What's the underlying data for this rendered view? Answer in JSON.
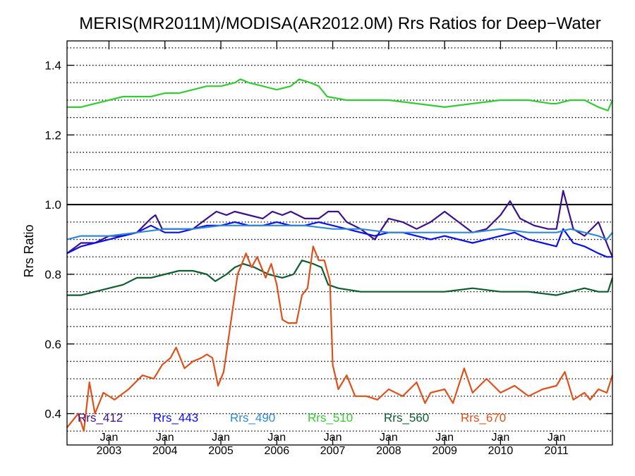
{
  "chart_data": {
    "type": "line",
    "title": "MERIS(MR2011M)/MODISA(AR2012.0M)  Rrs Ratios for Deep−Water",
    "ylabel": "Rrs Ratio",
    "xlabel": "",
    "xlim": [
      2002.25,
      2012.0
    ],
    "ylim": [
      0.31,
      1.47
    ],
    "yticks": [
      0.4,
      0.6,
      0.8,
      1.0,
      1.2,
      1.4
    ],
    "ytick_labels": [
      "0.4",
      "0.6",
      "0.8",
      "1.0",
      "1.2",
      "1.4"
    ],
    "yminor_step": 0.05,
    "grid": "horizontal dotted every 0.05",
    "reference_line": 1.0,
    "xticks": [
      {
        "x": 2003.0,
        "line1": "Jan",
        "line2": "2003"
      },
      {
        "x": 2004.0,
        "line1": "Jan",
        "line2": "2004"
      },
      {
        "x": 2005.0,
        "line1": "Jan",
        "line2": "2005"
      },
      {
        "x": 2006.0,
        "line1": "Jan",
        "line2": "2006"
      },
      {
        "x": 2007.0,
        "line1": "Jan",
        "line2": "2007"
      },
      {
        "x": 2008.0,
        "line1": "Jan",
        "line2": "2008"
      },
      {
        "x": 2009.0,
        "line1": "Jan",
        "line2": "2009"
      },
      {
        "x": 2010.0,
        "line1": "Jan",
        "line2": "2010"
      },
      {
        "x": 2011.0,
        "line1": "Jan",
        "line2": "2011"
      }
    ],
    "legend_placement": "bottom inside",
    "series": [
      {
        "name": "Rrs_412",
        "color": "#3d0f8c",
        "points": [
          [
            2002.25,
            0.86
          ],
          [
            2002.5,
            0.89
          ],
          [
            2002.75,
            0.89
          ],
          [
            2003.0,
            0.91
          ],
          [
            2003.25,
            0.91
          ],
          [
            2003.5,
            0.92
          ],
          [
            2003.75,
            0.96
          ],
          [
            2003.83,
            0.97
          ],
          [
            2003.95,
            0.93
          ],
          [
            2004.25,
            0.93
          ],
          [
            2004.5,
            0.93
          ],
          [
            2004.75,
            0.96
          ],
          [
            2004.92,
            0.98
          ],
          [
            2005.1,
            0.97
          ],
          [
            2005.25,
            0.98
          ],
          [
            2005.5,
            0.97
          ],
          [
            2005.75,
            0.96
          ],
          [
            2005.92,
            0.98
          ],
          [
            2006.1,
            0.97
          ],
          [
            2006.25,
            0.98
          ],
          [
            2006.5,
            0.96
          ],
          [
            2006.75,
            0.96
          ],
          [
            2006.92,
            0.98
          ],
          [
            2007.1,
            0.98
          ],
          [
            2007.25,
            0.95
          ],
          [
            2007.5,
            0.93
          ],
          [
            2007.75,
            0.9
          ],
          [
            2008.0,
            0.96
          ],
          [
            2008.25,
            0.95
          ],
          [
            2008.5,
            0.93
          ],
          [
            2008.75,
            0.95
          ],
          [
            2009.0,
            0.98
          ],
          [
            2009.25,
            0.95
          ],
          [
            2009.5,
            0.92
          ],
          [
            2009.75,
            0.93
          ],
          [
            2010.0,
            0.97
          ],
          [
            2010.17,
            1.01
          ],
          [
            2010.35,
            0.96
          ],
          [
            2010.6,
            0.94
          ],
          [
            2010.85,
            0.93
          ],
          [
            2011.0,
            0.93
          ],
          [
            2011.12,
            1.04
          ],
          [
            2011.3,
            0.93
          ],
          [
            2011.5,
            0.91
          ],
          [
            2011.75,
            0.95
          ],
          [
            2011.92,
            0.88
          ],
          [
            2012.0,
            0.85
          ]
        ]
      },
      {
        "name": "Rrs_443",
        "color": "#0a0ff0",
        "points": [
          [
            2002.25,
            0.86
          ],
          [
            2002.5,
            0.88
          ],
          [
            2002.75,
            0.89
          ],
          [
            2003.0,
            0.9
          ],
          [
            2003.25,
            0.91
          ],
          [
            2003.5,
            0.92
          ],
          [
            2003.75,
            0.94
          ],
          [
            2004.0,
            0.92
          ],
          [
            2004.25,
            0.92
          ],
          [
            2004.5,
            0.93
          ],
          [
            2004.75,
            0.94
          ],
          [
            2005.0,
            0.94
          ],
          [
            2005.25,
            0.95
          ],
          [
            2005.5,
            0.94
          ],
          [
            2005.75,
            0.94
          ],
          [
            2006.0,
            0.95
          ],
          [
            2006.25,
            0.94
          ],
          [
            2006.5,
            0.94
          ],
          [
            2006.75,
            0.95
          ],
          [
            2007.0,
            0.94
          ],
          [
            2007.25,
            0.93
          ],
          [
            2007.5,
            0.92
          ],
          [
            2007.75,
            0.91
          ],
          [
            2008.0,
            0.92
          ],
          [
            2008.25,
            0.92
          ],
          [
            2008.5,
            0.91
          ],
          [
            2008.75,
            0.9
          ],
          [
            2009.0,
            0.91
          ],
          [
            2009.25,
            0.9
          ],
          [
            2009.5,
            0.89
          ],
          [
            2009.75,
            0.9
          ],
          [
            2010.0,
            0.91
          ],
          [
            2010.25,
            0.92
          ],
          [
            2010.5,
            0.9
          ],
          [
            2010.75,
            0.89
          ],
          [
            2011.0,
            0.88
          ],
          [
            2011.12,
            0.93
          ],
          [
            2011.3,
            0.89
          ],
          [
            2011.5,
            0.88
          ],
          [
            2011.75,
            0.86
          ],
          [
            2011.9,
            0.85
          ],
          [
            2012.0,
            0.85
          ]
        ]
      },
      {
        "name": "Rrs_490",
        "color": "#2e8ad6",
        "points": [
          [
            2002.25,
            0.9
          ],
          [
            2002.5,
            0.91
          ],
          [
            2002.75,
            0.91
          ],
          [
            2003.0,
            0.91
          ],
          [
            2003.5,
            0.92
          ],
          [
            2004.0,
            0.93
          ],
          [
            2004.5,
            0.93
          ],
          [
            2005.0,
            0.94
          ],
          [
            2005.5,
            0.94
          ],
          [
            2006.0,
            0.94
          ],
          [
            2006.5,
            0.94
          ],
          [
            2007.0,
            0.93
          ],
          [
            2007.5,
            0.93
          ],
          [
            2008.0,
            0.92
          ],
          [
            2008.5,
            0.92
          ],
          [
            2009.0,
            0.92
          ],
          [
            2009.5,
            0.92
          ],
          [
            2010.0,
            0.93
          ],
          [
            2010.5,
            0.92
          ],
          [
            2011.0,
            0.92
          ],
          [
            2011.25,
            0.93
          ],
          [
            2011.5,
            0.92
          ],
          [
            2011.75,
            0.91
          ],
          [
            2011.9,
            0.9
          ],
          [
            2012.0,
            0.92
          ]
        ]
      },
      {
        "name": "Rrs_510",
        "color": "#33cc33",
        "points": [
          [
            2002.25,
            1.28
          ],
          [
            2002.5,
            1.28
          ],
          [
            2002.75,
            1.29
          ],
          [
            2003.0,
            1.3
          ],
          [
            2003.25,
            1.31
          ],
          [
            2003.5,
            1.31
          ],
          [
            2003.75,
            1.31
          ],
          [
            2004.0,
            1.32
          ],
          [
            2004.25,
            1.32
          ],
          [
            2004.5,
            1.33
          ],
          [
            2004.75,
            1.34
          ],
          [
            2005.0,
            1.34
          ],
          [
            2005.25,
            1.35
          ],
          [
            2005.35,
            1.36
          ],
          [
            2005.5,
            1.35
          ],
          [
            2005.75,
            1.34
          ],
          [
            2006.0,
            1.33
          ],
          [
            2006.25,
            1.34
          ],
          [
            2006.4,
            1.36
          ],
          [
            2006.6,
            1.35
          ],
          [
            2006.75,
            1.34
          ],
          [
            2006.9,
            1.31
          ],
          [
            2007.25,
            1.3
          ],
          [
            2007.5,
            1.3
          ],
          [
            2008.0,
            1.3
          ],
          [
            2008.5,
            1.29
          ],
          [
            2009.0,
            1.28
          ],
          [
            2009.5,
            1.29
          ],
          [
            2010.0,
            1.3
          ],
          [
            2010.5,
            1.3
          ],
          [
            2010.9,
            1.29
          ],
          [
            2011.0,
            1.29
          ],
          [
            2011.25,
            1.3
          ],
          [
            2011.5,
            1.3
          ],
          [
            2011.75,
            1.28
          ],
          [
            2011.92,
            1.27
          ],
          [
            2012.0,
            1.3
          ]
        ]
      },
      {
        "name": "Rrs_560",
        "color": "#0d5e2e",
        "points": [
          [
            2002.25,
            0.74
          ],
          [
            2002.5,
            0.74
          ],
          [
            2002.75,
            0.75
          ],
          [
            2003.0,
            0.76
          ],
          [
            2003.25,
            0.77
          ],
          [
            2003.5,
            0.79
          ],
          [
            2003.75,
            0.79
          ],
          [
            2004.0,
            0.8
          ],
          [
            2004.25,
            0.81
          ],
          [
            2004.5,
            0.81
          ],
          [
            2004.75,
            0.8
          ],
          [
            2004.9,
            0.78
          ],
          [
            2005.1,
            0.8
          ],
          [
            2005.25,
            0.82
          ],
          [
            2005.4,
            0.83
          ],
          [
            2005.6,
            0.82
          ],
          [
            2005.85,
            0.8
          ],
          [
            2006.1,
            0.79
          ],
          [
            2006.3,
            0.8
          ],
          [
            2006.45,
            0.84
          ],
          [
            2006.65,
            0.83
          ],
          [
            2006.8,
            0.82
          ],
          [
            2006.92,
            0.77
          ],
          [
            2007.1,
            0.76
          ],
          [
            2007.5,
            0.75
          ],
          [
            2008.0,
            0.75
          ],
          [
            2008.5,
            0.75
          ],
          [
            2009.0,
            0.75
          ],
          [
            2009.5,
            0.76
          ],
          [
            2010.0,
            0.75
          ],
          [
            2010.5,
            0.75
          ],
          [
            2011.0,
            0.74
          ],
          [
            2011.25,
            0.75
          ],
          [
            2011.5,
            0.76
          ],
          [
            2011.75,
            0.75
          ],
          [
            2011.92,
            0.75
          ],
          [
            2012.0,
            0.79
          ]
        ]
      },
      {
        "name": "Rrs_670",
        "color": "#e0501a",
        "points": [
          [
            2002.25,
            0.36
          ],
          [
            2002.45,
            0.4
          ],
          [
            2002.55,
            0.35
          ],
          [
            2002.65,
            0.49
          ],
          [
            2002.75,
            0.4
          ],
          [
            2002.9,
            0.46
          ],
          [
            2003.1,
            0.44
          ],
          [
            2003.35,
            0.47
          ],
          [
            2003.6,
            0.51
          ],
          [
            2003.8,
            0.5
          ],
          [
            2003.95,
            0.54
          ],
          [
            2004.1,
            0.56
          ],
          [
            2004.2,
            0.59
          ],
          [
            2004.35,
            0.53
          ],
          [
            2004.5,
            0.55
          ],
          [
            2004.65,
            0.56
          ],
          [
            2004.75,
            0.57
          ],
          [
            2004.85,
            0.56
          ],
          [
            2004.95,
            0.48
          ],
          [
            2005.05,
            0.52
          ],
          [
            2005.15,
            0.63
          ],
          [
            2005.3,
            0.8
          ],
          [
            2005.45,
            0.86
          ],
          [
            2005.55,
            0.82
          ],
          [
            2005.65,
            0.85
          ],
          [
            2005.8,
            0.79
          ],
          [
            2005.9,
            0.83
          ],
          [
            2006.0,
            0.77
          ],
          [
            2006.1,
            0.67
          ],
          [
            2006.2,
            0.66
          ],
          [
            2006.35,
            0.66
          ],
          [
            2006.45,
            0.74
          ],
          [
            2006.55,
            0.76
          ],
          [
            2006.65,
            0.88
          ],
          [
            2006.75,
            0.84
          ],
          [
            2006.85,
            0.84
          ],
          [
            2006.95,
            0.78
          ],
          [
            2007.0,
            0.54
          ],
          [
            2007.1,
            0.47
          ],
          [
            2007.25,
            0.51
          ],
          [
            2007.4,
            0.45
          ],
          [
            2007.6,
            0.45
          ],
          [
            2007.8,
            0.44
          ],
          [
            2008.0,
            0.47
          ],
          [
            2008.25,
            0.45
          ],
          [
            2008.5,
            0.49
          ],
          [
            2008.65,
            0.43
          ],
          [
            2008.75,
            0.46
          ],
          [
            2009.0,
            0.47
          ],
          [
            2009.15,
            0.43
          ],
          [
            2009.35,
            0.53
          ],
          [
            2009.5,
            0.46
          ],
          [
            2009.75,
            0.5
          ],
          [
            2010.0,
            0.46
          ],
          [
            2010.25,
            0.48
          ],
          [
            2010.5,
            0.45
          ],
          [
            2010.75,
            0.47
          ],
          [
            2011.0,
            0.48
          ],
          [
            2011.15,
            0.52
          ],
          [
            2011.3,
            0.44
          ],
          [
            2011.5,
            0.46
          ],
          [
            2011.6,
            0.44
          ],
          [
            2011.75,
            0.47
          ],
          [
            2011.9,
            0.46
          ],
          [
            2012.0,
            0.51
          ]
        ]
      }
    ]
  }
}
